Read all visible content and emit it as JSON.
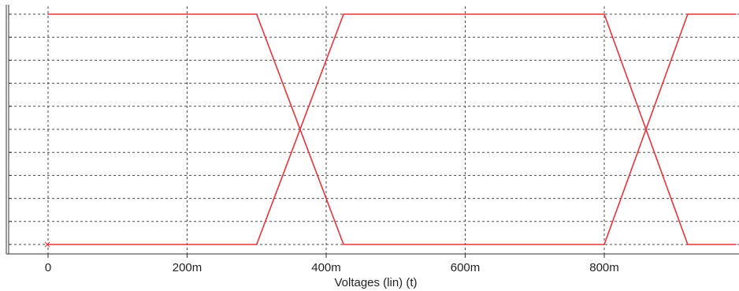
{
  "chart_data": {
    "type": "line",
    "title": "",
    "xlabel": "Voltages (lin) (t)",
    "ylabel": "",
    "x_ticks": [
      {
        "value": 0,
        "label": "0"
      },
      {
        "value": 0.2,
        "label": "200m"
      },
      {
        "value": 0.4,
        "label": "400m"
      },
      {
        "value": 0.6,
        "label": "600m"
      },
      {
        "value": 0.8,
        "label": "800m"
      }
    ],
    "xlim": [
      -0.055,
      0.99
    ],
    "ylim": [
      0,
      1
    ],
    "y_gridlines": 10,
    "grid": true,
    "line_color": "#e8323c",
    "series": [
      {
        "x": [
          0,
          0.3,
          0.425,
          0.8,
          0.92,
          0.99
        ],
        "y": [
          1,
          1,
          0,
          0,
          1,
          1
        ]
      },
      {
        "x": [
          0,
          0.3,
          0.425,
          0.8,
          0.92,
          0.99
        ],
        "y": [
          0,
          0,
          1,
          1,
          0,
          0
        ]
      }
    ],
    "marker": {
      "x": 0,
      "y": 0,
      "symbol": "×"
    }
  }
}
